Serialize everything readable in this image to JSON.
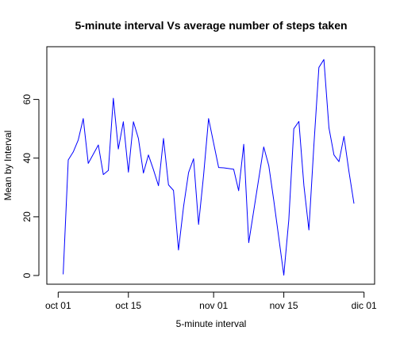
{
  "chart_data": {
    "type": "line",
    "title": "5-minute interval Vs average number of steps taken",
    "xlabel": "5-minute interval",
    "ylabel": "Mean by Interval",
    "x_type": "date",
    "xlim": [
      "2012-09-30",
      "2012-12-02"
    ],
    "ylim": [
      0,
      75
    ],
    "x_ticks": [
      {
        "value": "2012-10-01",
        "label": "oct 01"
      },
      {
        "value": "2012-10-15",
        "label": "oct 15"
      },
      {
        "value": "2012-11-01",
        "label": "nov 01"
      },
      {
        "value": "2012-11-15",
        "label": "nov 15"
      },
      {
        "value": "2012-12-01",
        "label": "dic 01"
      }
    ],
    "y_ticks": [
      0,
      20,
      40,
      60
    ],
    "grid": false,
    "series_color": "#0000ff",
    "x": [
      "2012-10-02",
      "2012-10-03",
      "2012-10-04",
      "2012-10-05",
      "2012-10-06",
      "2012-10-07",
      "2012-10-09",
      "2012-10-10",
      "2012-10-11",
      "2012-10-12",
      "2012-10-13",
      "2012-10-14",
      "2012-10-15",
      "2012-10-16",
      "2012-10-17",
      "2012-10-18",
      "2012-10-19",
      "2012-10-20",
      "2012-10-21",
      "2012-10-22",
      "2012-10-23",
      "2012-10-24",
      "2012-10-25",
      "2012-10-26",
      "2012-10-27",
      "2012-10-28",
      "2012-10-29",
      "2012-10-30",
      "2012-10-31",
      "2012-11-02",
      "2012-11-03",
      "2012-11-05",
      "2012-11-06",
      "2012-11-07",
      "2012-11-08",
      "2012-11-11",
      "2012-11-12",
      "2012-11-13",
      "2012-11-15",
      "2012-11-16",
      "2012-11-17",
      "2012-11-18",
      "2012-11-19",
      "2012-11-20",
      "2012-11-21",
      "2012-11-22",
      "2012-11-23",
      "2012-11-24",
      "2012-11-25",
      "2012-11-26",
      "2012-11-27",
      "2012-11-28",
      "2012-11-29"
    ],
    "series": [
      {
        "values": [
          0.4,
          39.4,
          42.1,
          46.2,
          53.5,
          38.2,
          44.5,
          34.4,
          35.8,
          60.4,
          43.1,
          52.4,
          35.2,
          52.4,
          46.7,
          34.9,
          41.1,
          36.1,
          30.6,
          46.7,
          30.9,
          29.0,
          8.7,
          23.5,
          35.1,
          39.8,
          17.4,
          34.1,
          53.5,
          36.8,
          36.7,
          36.2,
          28.9,
          44.7,
          11.2,
          43.8,
          37.4,
          25.5,
          0.1,
          19.0,
          50.0,
          52.5,
          30.7,
          15.5,
          44.4,
          70.9,
          73.6,
          50.3,
          41.1,
          38.8,
          47.4,
          35.4,
          24.5
        ]
      }
    ]
  }
}
